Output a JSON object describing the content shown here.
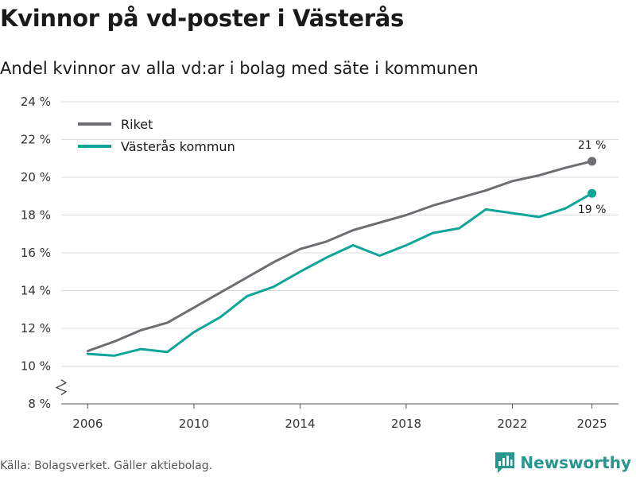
{
  "header": {
    "title": "Kvinnor på vd-poster i Västerås",
    "subtitle": "Andel kvinnor av alla vd:ar i bolag med säte i kommunen"
  },
  "footer": {
    "source": "Källa: Bolagsverket. Gäller aktiebolag.",
    "brand": "Newsworthy",
    "brand_icon": "bar-chart-logo-icon"
  },
  "colors": {
    "riket": "#6e6d72",
    "vasteras": "#0fa69a",
    "grid": "#dddddd",
    "brand": "#26968f"
  },
  "chart_data": {
    "type": "line",
    "title": "Kvinnor på vd-poster i Västerås",
    "subtitle": "Andel kvinnor av alla vd:ar i bolag med säte i kommunen",
    "xlabel": "",
    "ylabel": "",
    "xlim": [
      2005.0,
      2026.0
    ],
    "ylim": [
      8,
      24
    ],
    "x_ticks": [
      2006,
      2010,
      2014,
      2018,
      2022,
      2025
    ],
    "y_ticks": [
      8,
      10,
      12,
      14,
      16,
      18,
      20,
      22,
      24
    ],
    "y_tick_labels": [
      "8 %",
      "10 %",
      "12 %",
      "14 %",
      "16 %",
      "18 %",
      "20 %",
      "22 %",
      "24 %"
    ],
    "axis_break": true,
    "grid": true,
    "legend_position": "top-left",
    "x": [
      2006,
      2007,
      2008,
      2009,
      2010,
      2011,
      2012,
      2013,
      2014,
      2015,
      2016,
      2017,
      2018,
      2019,
      2020,
      2021,
      2022,
      2023,
      2024,
      2025
    ],
    "series": [
      {
        "name": "Riket",
        "color": "#6e6d72",
        "values": [
          10.8,
          11.3,
          11.9,
          12.3,
          13.1,
          13.9,
          14.7,
          15.5,
          16.2,
          16.6,
          17.2,
          17.6,
          18.0,
          18.5,
          18.9,
          19.3,
          19.8,
          20.1,
          20.5,
          20.85
        ],
        "end_label": "21 %",
        "end_label_position": "above"
      },
      {
        "name": "Västerås kommun",
        "color": "#0fa69a",
        "values": [
          10.65,
          10.55,
          10.9,
          10.75,
          11.8,
          12.6,
          13.7,
          14.2,
          15.0,
          15.75,
          16.4,
          15.85,
          16.4,
          17.05,
          17.3,
          18.3,
          18.1,
          17.9,
          18.35,
          19.15
        ],
        "end_label": "19 %",
        "end_label_position": "below"
      }
    ]
  }
}
